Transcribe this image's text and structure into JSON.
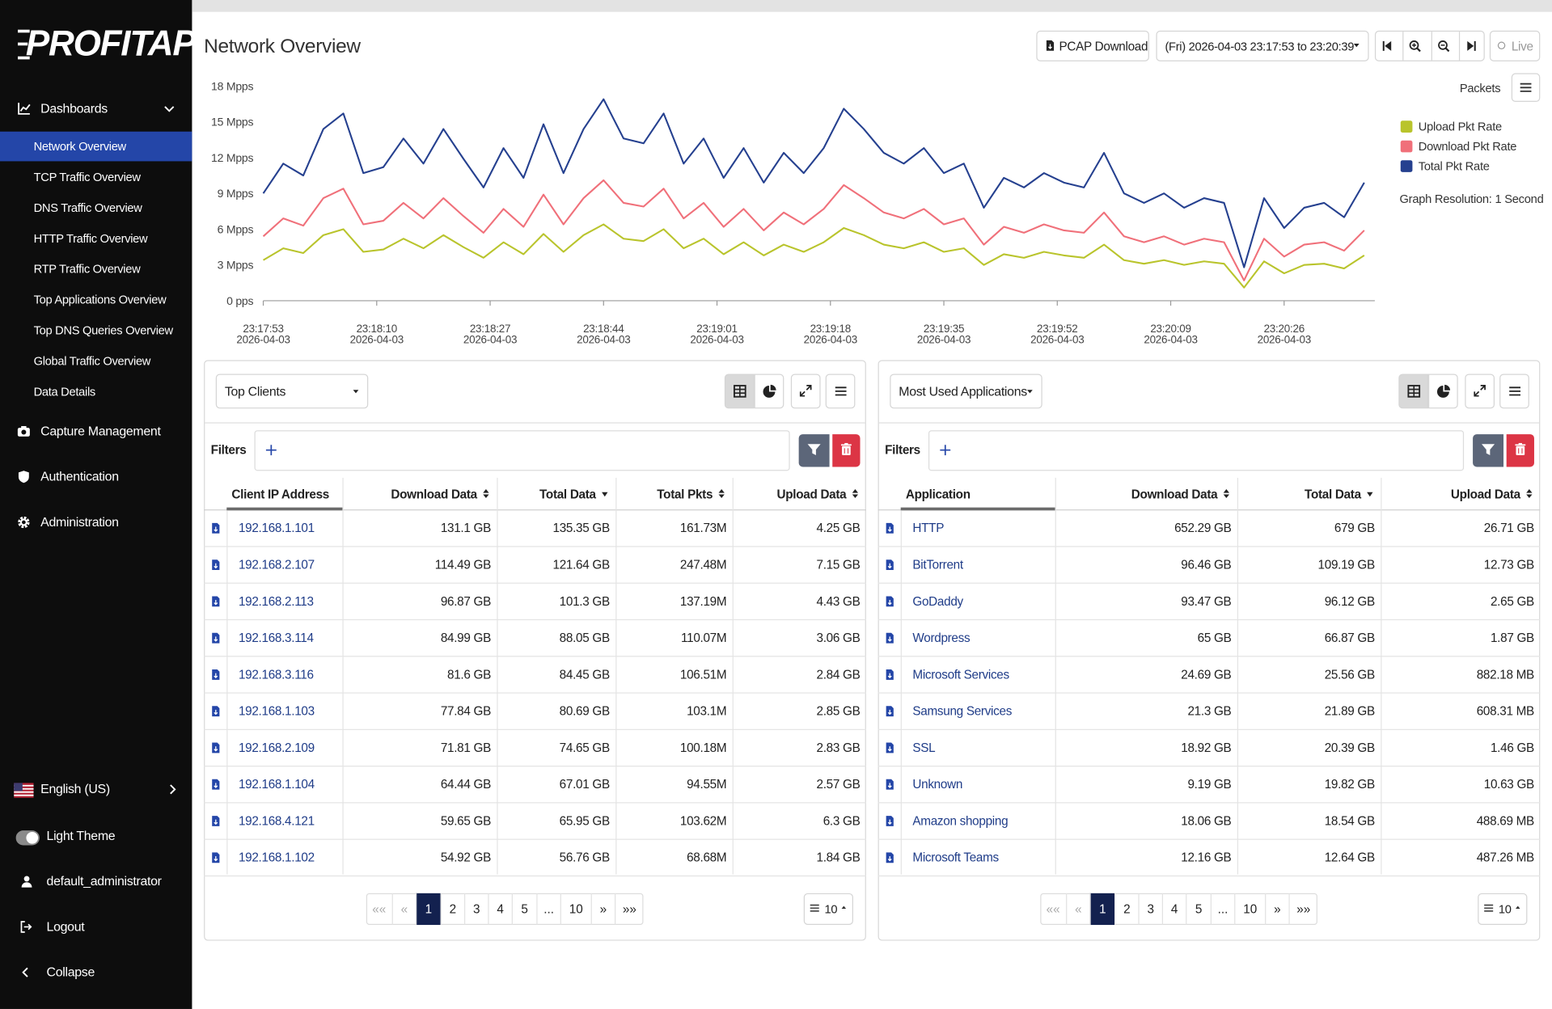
{
  "sidebar": {
    "logo": "PROFITAP",
    "menu": [
      {
        "label": "Dashboards",
        "items": [
          "Network Overview",
          "TCP Traffic Overview",
          "DNS Traffic Overview",
          "HTTP Traffic Overview",
          "RTP Traffic Overview",
          "Top Applications Overview",
          "Top DNS Queries Overview",
          "Global Traffic Overview",
          "Data Details"
        ]
      },
      {
        "label": "Capture Management"
      },
      {
        "label": "Authentication"
      },
      {
        "label": "Administration"
      }
    ],
    "language": "English (US)",
    "theme": "Light Theme",
    "user": "default_administrator",
    "logout": "Logout",
    "collapse": "Collapse"
  },
  "header": {
    "title": "Network Overview",
    "pcap": "PCAP Download",
    "range": "(Fri) 2026-04-03 23:17:53 to 23:20:39",
    "live": "Live"
  },
  "chart_data": {
    "type": "line",
    "legend_title": "Packets",
    "note": "Graph Resolution: 1 Second",
    "legend": "right",
    "grid": false,
    "x": [
      83873,
      83876,
      83879,
      83882,
      83885,
      83888,
      83891,
      83894,
      83897,
      83900,
      83903,
      83906,
      83909,
      83912,
      83915,
      83918,
      83921,
      83924,
      83927,
      83930,
      83933,
      83936,
      83939,
      83942,
      83945,
      83948,
      83951,
      83954,
      83957,
      83960,
      83963,
      83966,
      83969,
      83972,
      83975,
      83978,
      83981,
      83984,
      83987,
      83990,
      83993,
      83996,
      83999,
      84002,
      84005,
      84008,
      84011,
      84014,
      84017,
      84020,
      84023,
      84026,
      84029,
      84032,
      84035,
      84038
    ],
    "xlim": [
      83873,
      84039
    ],
    "xticks": [
      {
        "value": 83873,
        "label": "23:17:53"
      },
      {
        "value": 83890,
        "label": "23:18:10"
      },
      {
        "value": 83907,
        "label": "23:18:27"
      },
      {
        "value": 83924,
        "label": "23:18:44"
      },
      {
        "value": 83941,
        "label": "23:19:01"
      },
      {
        "value": 83958,
        "label": "23:19:18"
      },
      {
        "value": 83975,
        "label": "23:19:35"
      },
      {
        "value": 83992,
        "label": "23:19:52"
      },
      {
        "value": 84009,
        "label": "23:20:09"
      },
      {
        "value": 84026,
        "label": "23:20:26"
      }
    ],
    "xtick_dates": [
      "2026-04-03",
      "2026-04-03",
      "2026-04-03",
      "2026-04-03",
      "2026-04-03",
      "2026-04-03",
      "2026-04-03",
      "2026-04-03",
      "2026-04-03",
      "2026-04-03"
    ],
    "ylim": [
      0,
      18
    ],
    "yticks": [
      {
        "value": 0,
        "label": "0 pps"
      },
      {
        "value": 3,
        "label": "3 Mpps"
      },
      {
        "value": 6,
        "label": "6 Mpps"
      },
      {
        "value": 9,
        "label": "9 Mpps"
      },
      {
        "value": 12,
        "label": "12 Mpps"
      },
      {
        "value": 15,
        "label": "15 Mpps"
      },
      {
        "value": 18,
        "label": "18 Mpps"
      }
    ],
    "series": [
      {
        "name": "Upload Pkt Rate",
        "color": "#b9c42c",
        "values": [
          3.4,
          4.4,
          4.0,
          5.5,
          6.0,
          4.1,
          4.3,
          5.2,
          4.4,
          5.5,
          4.5,
          3.6,
          4.9,
          3.9,
          5.6,
          4.1,
          5.5,
          6.4,
          5.2,
          5.0,
          6.0,
          4.4,
          5.2,
          3.9,
          4.9,
          3.8,
          4.7,
          4.1,
          4.9,
          6.1,
          5.5,
          4.7,
          4.4,
          4.9,
          4.1,
          4.4,
          3.0,
          3.9,
          3.6,
          4.1,
          3.8,
          3.6,
          4.7,
          3.4,
          3.1,
          3.4,
          3.0,
          3.3,
          3.1,
          1.1,
          3.3,
          2.3,
          3.0,
          3.1,
          2.7,
          3.8
        ]
      },
      {
        "name": "Download Pkt Rate",
        "color": "#f0707a",
        "values": [
          5.4,
          6.9,
          6.3,
          8.6,
          9.4,
          6.4,
          6.7,
          8.2,
          6.9,
          8.6,
          7.1,
          5.7,
          7.7,
          6.2,
          8.9,
          6.4,
          8.6,
          10.1,
          8.2,
          7.9,
          9.4,
          6.9,
          8.2,
          6.2,
          7.7,
          5.9,
          7.4,
          6.4,
          7.7,
          9.7,
          8.6,
          7.4,
          6.9,
          7.7,
          6.4,
          6.9,
          4.7,
          6.2,
          5.7,
          6.4,
          5.9,
          5.7,
          7.4,
          5.4,
          4.9,
          5.4,
          4.7,
          5.2,
          4.9,
          1.7,
          5.2,
          3.7,
          4.7,
          4.9,
          4.2,
          5.9
        ]
      },
      {
        "name": "Total Pkt Rate",
        "color": "#25408f",
        "values": [
          9.0,
          11.5,
          10.5,
          14.4,
          15.7,
          10.7,
          11.2,
          13.6,
          11.5,
          14.4,
          11.9,
          9.5,
          12.8,
          10.3,
          14.8,
          10.7,
          14.4,
          16.9,
          13.6,
          13.2,
          15.7,
          11.5,
          13.6,
          10.3,
          12.8,
          9.9,
          12.4,
          10.7,
          12.8,
          16.1,
          14.4,
          12.4,
          11.5,
          12.8,
          10.7,
          11.5,
          7.8,
          10.3,
          9.5,
          10.7,
          9.9,
          9.5,
          12.4,
          9.0,
          8.2,
          9.0,
          7.8,
          8.6,
          8.2,
          2.8,
          8.6,
          6.1,
          7.8,
          8.2,
          7.0,
          9.9
        ]
      }
    ]
  },
  "tables": [
    {
      "selector": "Top Clients",
      "filters": "Filters",
      "columns": [
        "Client IP Address",
        "Download Data",
        "Total Data",
        "Total Pkts",
        "Upload Data"
      ],
      "rows": [
        [
          "192.168.1.101",
          "131.1 GB",
          "135.35 GB",
          "161.73M",
          "4.25 GB"
        ],
        [
          "192.168.2.107",
          "114.49 GB",
          "121.64 GB",
          "247.48M",
          "7.15 GB"
        ],
        [
          "192.168.2.113",
          "96.87 GB",
          "101.3 GB",
          "137.19M",
          "4.43 GB"
        ],
        [
          "192.168.3.114",
          "84.99 GB",
          "88.05 GB",
          "110.07M",
          "3.06 GB"
        ],
        [
          "192.168.3.116",
          "81.6 GB",
          "84.45 GB",
          "106.51M",
          "2.84 GB"
        ],
        [
          "192.168.1.103",
          "77.84 GB",
          "80.69 GB",
          "103.1M",
          "2.85 GB"
        ],
        [
          "192.168.2.109",
          "71.81 GB",
          "74.65 GB",
          "100.18M",
          "2.83 GB"
        ],
        [
          "192.168.1.104",
          "64.44 GB",
          "67.01 GB",
          "94.55M",
          "2.57 GB"
        ],
        [
          "192.168.4.121",
          "59.65 GB",
          "65.95 GB",
          "103.62M",
          "6.3 GB"
        ],
        [
          "192.168.1.102",
          "54.92 GB",
          "56.76 GB",
          "68.68M",
          "1.84 GB"
        ]
      ],
      "pagination": {
        "first": "««",
        "prev": "«",
        "pages": [
          "1",
          "2",
          "3",
          "4",
          "5",
          "...",
          "10"
        ],
        "next": "»",
        "last": "»»",
        "page_size": "10"
      }
    },
    {
      "selector": "Most Used Applications",
      "filters": "Filters",
      "columns": [
        "Application",
        "Download Data",
        "Total Data",
        "Upload Data"
      ],
      "rows": [
        [
          "HTTP",
          "652.29 GB",
          "679 GB",
          "26.71 GB"
        ],
        [
          "BitTorrent",
          "96.46 GB",
          "109.19 GB",
          "12.73 GB"
        ],
        [
          "GoDaddy",
          "93.47 GB",
          "96.12 GB",
          "2.65 GB"
        ],
        [
          "Wordpress",
          "65 GB",
          "66.87 GB",
          "1.87 GB"
        ],
        [
          "Microsoft Services",
          "24.69 GB",
          "25.56 GB",
          "882.18 MB"
        ],
        [
          "Samsung Services",
          "21.3 GB",
          "21.89 GB",
          "608.31 MB"
        ],
        [
          "SSL",
          "18.92 GB",
          "20.39 GB",
          "1.46 GB"
        ],
        [
          "Unknown",
          "9.19 GB",
          "19.82 GB",
          "10.63 GB"
        ],
        [
          "Amazon shopping",
          "18.06 GB",
          "18.54 GB",
          "488.69 MB"
        ],
        [
          "Microsoft Teams",
          "12.16 GB",
          "12.64 GB",
          "487.26 MB"
        ]
      ],
      "pagination": {
        "first": "««",
        "prev": "«",
        "pages": [
          "1",
          "2",
          "3",
          "4",
          "5",
          "...",
          "10"
        ],
        "next": "»",
        "last": "»»",
        "page_size": "10"
      }
    }
  ]
}
